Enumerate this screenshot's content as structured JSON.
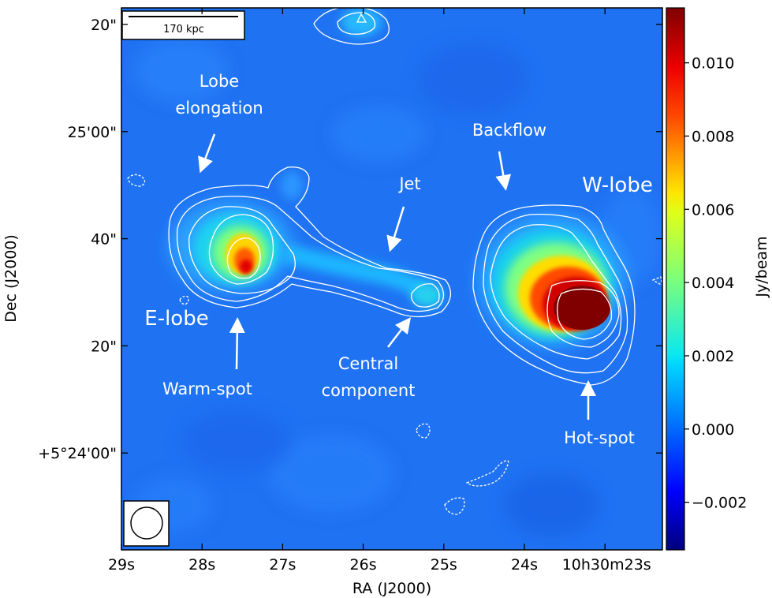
{
  "figure": {
    "colorbar_unit": "Jy/beam",
    "x_axis_title": "RA (J2000)",
    "y_axis_title": "Dec (J2000)"
  },
  "x_ticks": [
    {
      "label": "29s",
      "ra_seconds": 29
    },
    {
      "label": "28s",
      "ra_seconds": 28
    },
    {
      "label": "27s",
      "ra_seconds": 27
    },
    {
      "label": "26s",
      "ra_seconds": 26
    },
    {
      "label": "25s",
      "ra_seconds": 25
    },
    {
      "label": "24s",
      "ra_seconds": 24
    },
    {
      "label": "10h30m23s",
      "ra_seconds": 23
    }
  ],
  "y_ticks": [
    {
      "label": "20\"",
      "dec_arcsec": 20
    },
    {
      "label": "25'00\"",
      "dec_arcsec": 0
    },
    {
      "label": "40\"",
      "dec_arcsec": -20
    },
    {
      "label": "20\"",
      "dec_arcsec": -40
    },
    {
      "label": "+5°24'00\"",
      "dec_arcsec": -60
    }
  ],
  "colorbar": {
    "min": -0.0033,
    "max": 0.0115,
    "ticks": [
      {
        "label": "0.010",
        "value": 0.01
      },
      {
        "label": "0.008",
        "value": 0.008
      },
      {
        "label": "0.006",
        "value": 0.006
      },
      {
        "label": "0.004",
        "value": 0.004
      },
      {
        "label": "0.002",
        "value": 0.002
      },
      {
        "label": "0.000",
        "value": 0.0
      },
      {
        "label": "−0.002",
        "value": -0.002
      }
    ]
  },
  "scale_bar": {
    "label": "170 kpc"
  },
  "annotations": {
    "lobe_elongation_1": "Lobe",
    "lobe_elongation_2": "elongation",
    "backflow": "Backflow",
    "jet": "Jet",
    "w_lobe": "W-lobe",
    "e_lobe": "E-lobe",
    "warm_spot": "Warm-spot",
    "central_1": "Central",
    "central_2": "component",
    "hot_spot": "Hot-spot"
  },
  "colors": {
    "background_map": "#1e6ef0",
    "contour": "#ffffff",
    "annotation_text": "#ffffff"
  }
}
